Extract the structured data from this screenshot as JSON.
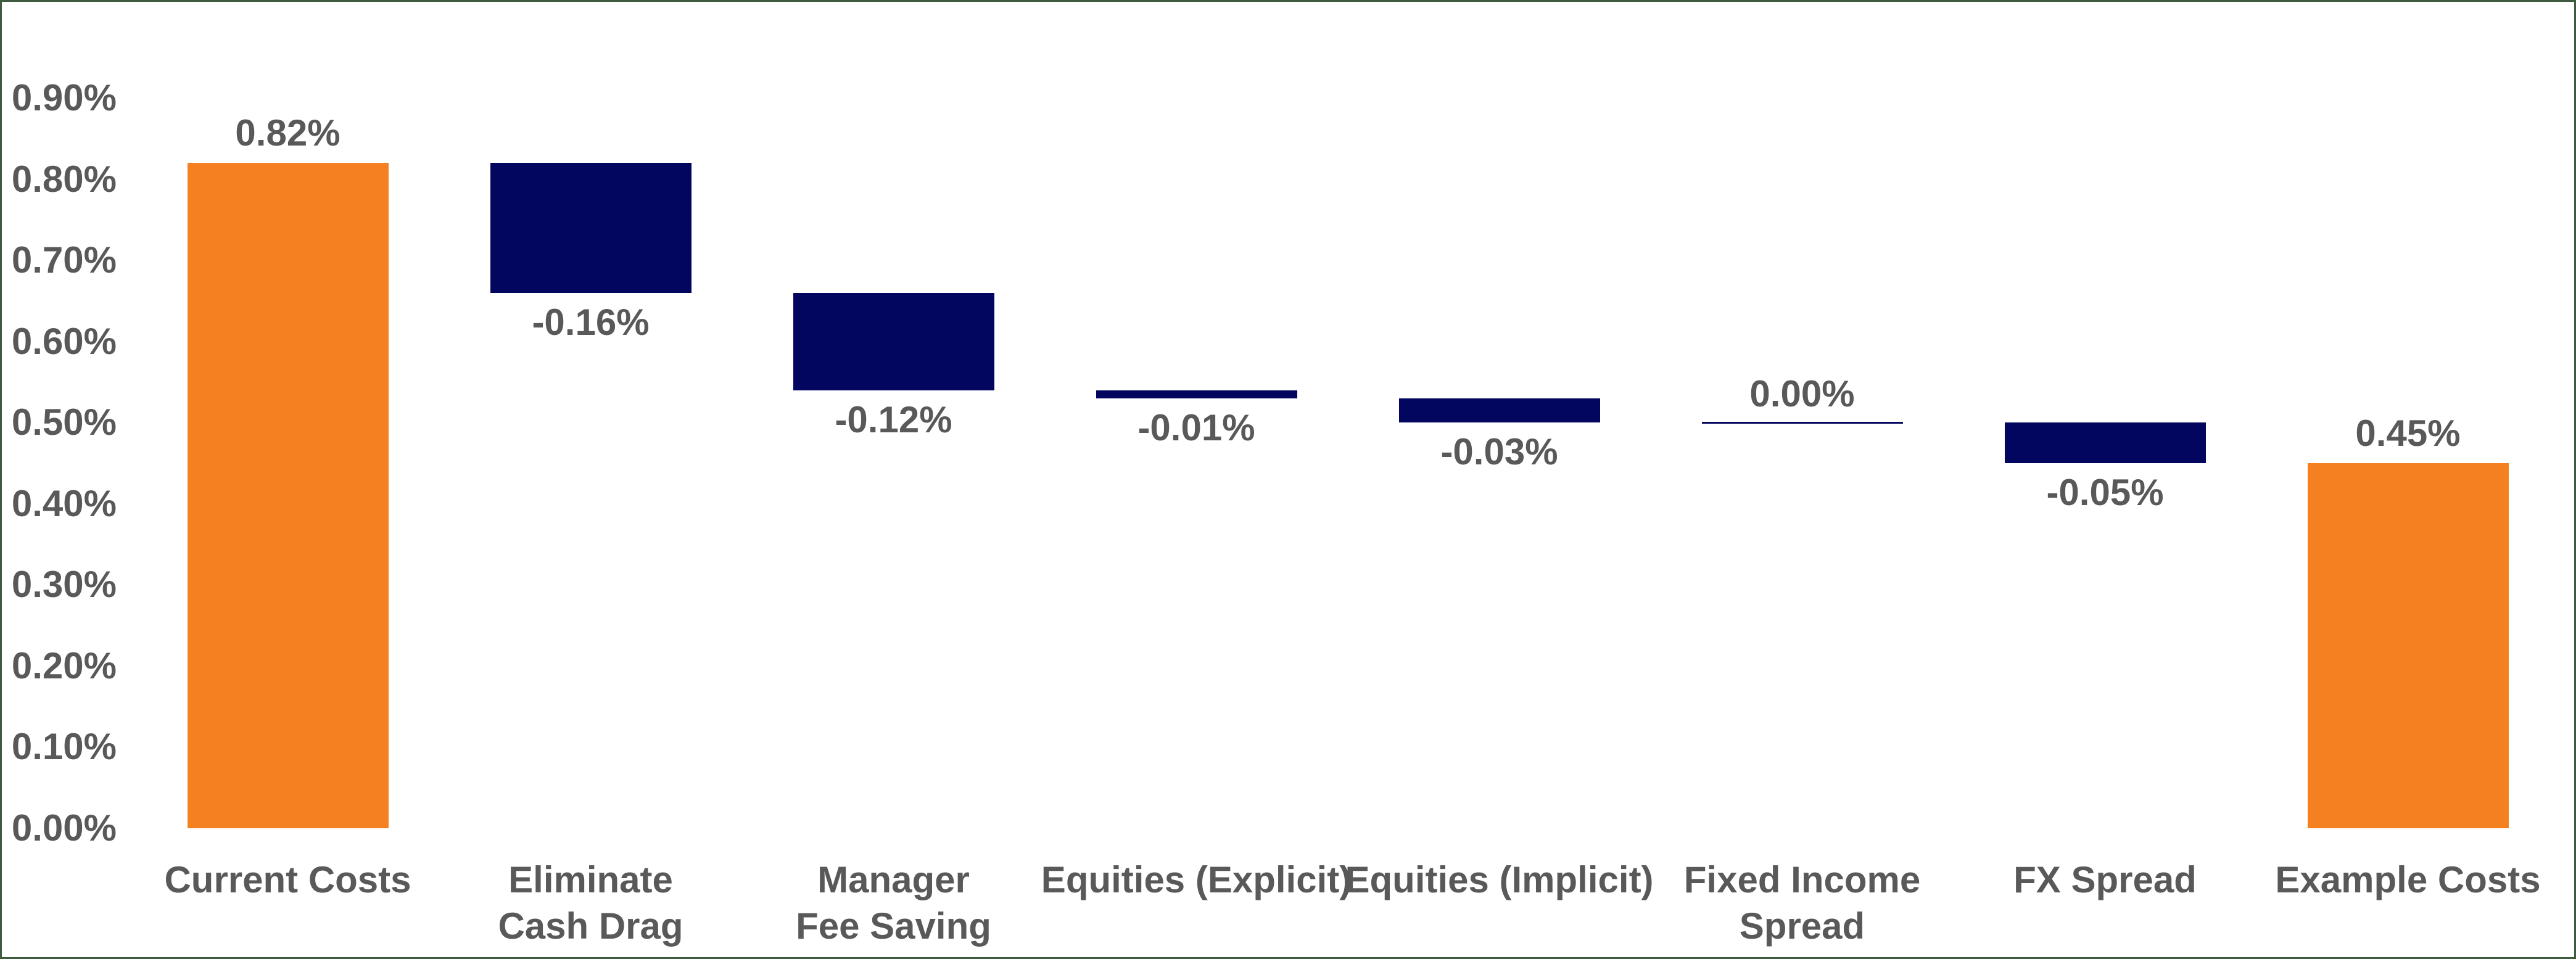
{
  "chart_data": {
    "type": "bar",
    "subtype": "waterfall",
    "title": "",
    "xlabel": "",
    "ylabel": "",
    "gridlines": false,
    "legend": false,
    "categories": [
      "Current Costs",
      "Eliminate Cash Drag",
      "Manager Fee Saving",
      "Equities (Explicit)",
      "Equities (Implicit)",
      "Fixed Income Spread",
      "FX Spread",
      "Example Costs"
    ],
    "category_lines": [
      [
        "Current Costs"
      ],
      [
        "Eliminate",
        "Cash Drag"
      ],
      [
        "Manager",
        "Fee Saving"
      ],
      [
        "Equities (Explicit)"
      ],
      [
        "Equities (Implicit)"
      ],
      [
        "Fixed Income",
        "Spread"
      ],
      [
        "FX Spread"
      ],
      [
        "Example Costs"
      ]
    ],
    "bars": [
      {
        "category": "Current Costs",
        "label": "0.82%",
        "value": 0.82,
        "from": 0.0,
        "to": 0.82,
        "kind": "total",
        "label_position": "above"
      },
      {
        "category": "Eliminate Cash Drag",
        "label": "-0.16%",
        "value": -0.16,
        "from": 0.82,
        "to": 0.66,
        "kind": "decrease",
        "label_position": "below"
      },
      {
        "category": "Manager Fee Saving",
        "label": "-0.12%",
        "value": -0.12,
        "from": 0.66,
        "to": 0.54,
        "kind": "decrease",
        "label_position": "below"
      },
      {
        "category": "Equities (Explicit)",
        "label": "-0.01%",
        "value": -0.01,
        "from": 0.54,
        "to": 0.53,
        "kind": "decrease",
        "label_position": "below"
      },
      {
        "category": "Equities (Implicit)",
        "label": "-0.03%",
        "value": -0.03,
        "from": 0.53,
        "to": 0.5,
        "kind": "decrease",
        "label_position": "below"
      },
      {
        "category": "Fixed Income Spread",
        "label": "0.00%",
        "value": 0.0,
        "from": 0.5,
        "to": 0.5,
        "kind": "zero",
        "label_position": "above"
      },
      {
        "category": "FX Spread",
        "label": "-0.05%",
        "value": -0.05,
        "from": 0.5,
        "to": 0.45,
        "kind": "decrease",
        "label_position": "below"
      },
      {
        "category": "Example Costs",
        "label": "0.45%",
        "value": 0.45,
        "from": 0.0,
        "to": 0.45,
        "kind": "total",
        "label_position": "above"
      }
    ],
    "y_axis": {
      "min": 0.0,
      "max": 0.9,
      "tick_step": 0.1,
      "tick_labels": [
        "0.90%",
        "0.80%",
        "0.70%",
        "0.60%",
        "0.50%",
        "0.40%",
        "0.30%",
        "0.20%",
        "0.10%",
        "0.00%"
      ]
    },
    "colors": {
      "total": "#F58020",
      "decrease": "#02065E",
      "zero_line": "#02065E",
      "label_text": "#595959",
      "axis_text": "#595959",
      "background": "#FFFFFF",
      "frame_border": "#3F5C40"
    }
  }
}
